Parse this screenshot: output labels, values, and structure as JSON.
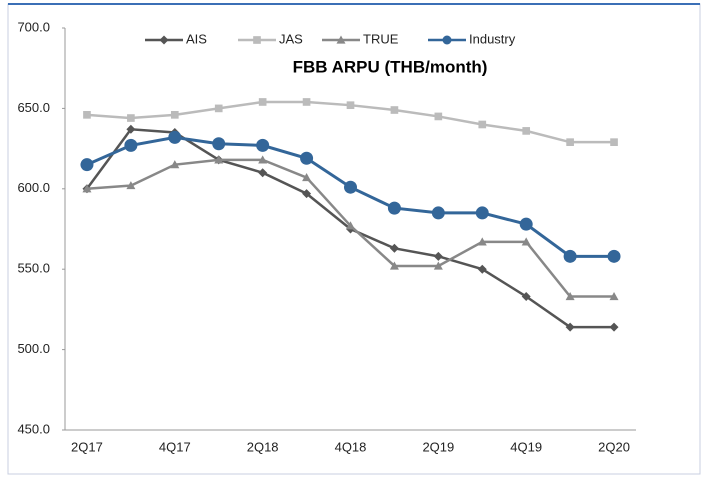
{
  "chart_data": {
    "type": "line",
    "title": "FBB ARPU (THB/month)",
    "categories": [
      "2Q17",
      null,
      "4Q17",
      null,
      "2Q18",
      null,
      "4Q18",
      null,
      "2Q19",
      null,
      "4Q19",
      null,
      "2Q20"
    ],
    "series": [
      {
        "name": "AIS",
        "color": "#555555",
        "marker": "diamond",
        "values": [
          600,
          637,
          635,
          618,
          610,
          597,
          575,
          563,
          558,
          550,
          533,
          514,
          514
        ]
      },
      {
        "name": "JAS",
        "color": "#bbbbbb",
        "marker": "square",
        "values": [
          646,
          644,
          646,
          650,
          654,
          654,
          652,
          649,
          645,
          640,
          636,
          629,
          629
        ]
      },
      {
        "name": "TRUE",
        "color": "#888888",
        "marker": "triangle",
        "values": [
          600,
          602,
          615,
          618,
          618,
          607,
          577,
          552,
          552,
          567,
          567,
          533,
          533
        ]
      },
      {
        "name": "Industry",
        "color": "#336699",
        "marker": "circle",
        "values": [
          615,
          627,
          632,
          628,
          627,
          619,
          601,
          588,
          585,
          585,
          578,
          558,
          558
        ]
      }
    ],
    "ylim": [
      450,
      700
    ],
    "yticks": [
      {
        "value": 450,
        "label": "450.0"
      },
      {
        "value": 500,
        "label": "500.0"
      },
      {
        "value": 550,
        "label": "550.0"
      },
      {
        "value": 600,
        "label": "600.0"
      },
      {
        "value": 650,
        "label": "650.0"
      },
      {
        "value": 700,
        "label": "700.0"
      }
    ],
    "legend": "top",
    "grid": false
  }
}
